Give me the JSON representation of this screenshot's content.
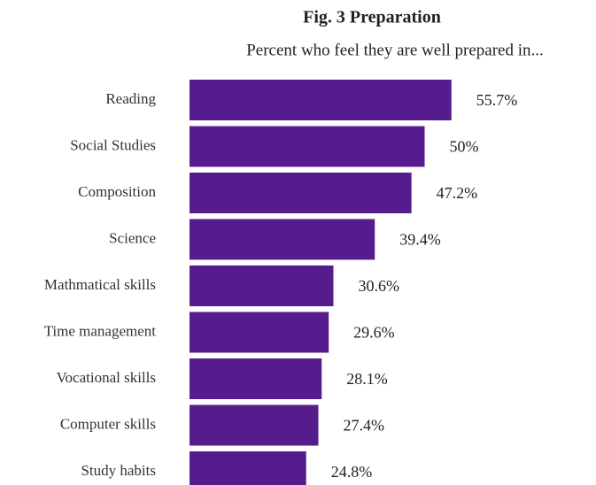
{
  "chart_data": {
    "type": "bar",
    "orientation": "horizontal",
    "title": "Fig. 3 Preparation",
    "subtitle": "Percent who feel they are well prepared in...",
    "categories": [
      "Reading",
      "Social Studies",
      "Composition",
      "Science",
      "Mathmatical skills",
      "Time management",
      "Vocational skills",
      "Computer skills",
      "Study habits"
    ],
    "values": [
      55.7,
      50,
      47.2,
      39.4,
      30.6,
      29.6,
      28.1,
      27.4,
      24.8
    ],
    "value_labels": [
      "55.7%",
      "50%",
      "47.2%",
      "39.4%",
      "30.6%",
      "29.6%",
      "28.1%",
      "27.4%",
      "24.8%"
    ],
    "color": "#561b8d"
  }
}
